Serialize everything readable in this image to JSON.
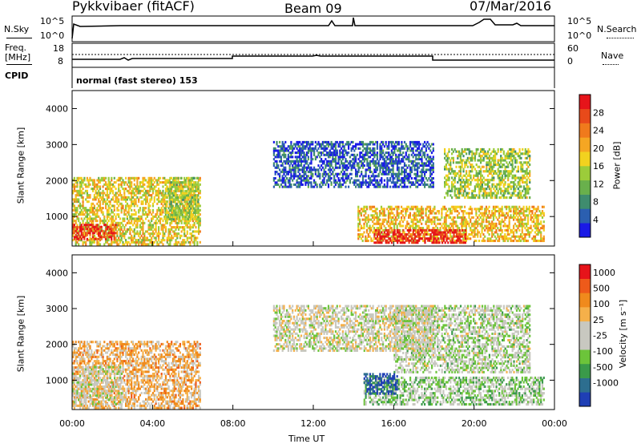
{
  "header": {
    "radar": "Pykkvibaer (fitACF)",
    "beam": "Beam 09",
    "date": "07/Mar/2016"
  },
  "aux": {
    "nsky_label": "N.Sky",
    "nsky_ticks": [
      "10^5",
      "10^0"
    ],
    "nsearch_label": "N.Search",
    "nsearch_ticks": [
      "10^5",
      "10^0"
    ],
    "freq_label": "Freq.",
    "freq_unit": "[MHz]",
    "freq_ticks": [
      "18",
      "8"
    ],
    "nave_label": "Nave",
    "nave_ticks": [
      "60",
      "0"
    ],
    "cpid_label": "CPID",
    "cpid_text": "normal (fast stereo) 153"
  },
  "chart_data": [
    {
      "type": "heatmap",
      "name": "power",
      "ylabel": "Slant Range [km]",
      "yticks": [
        "4000",
        "3000",
        "2000",
        "1000"
      ],
      "ylim": [
        180,
        4500
      ],
      "xlim": [
        0,
        24
      ],
      "colorbar_label": "Power [dB]",
      "colorbar_ticks": [
        "28",
        "24",
        "20",
        "16",
        "12",
        "8",
        "4"
      ],
      "colors": [
        "#1a1ae6",
        "#2b5fb0",
        "#3f8c6e",
        "#69b04c",
        "#9ccc3a",
        "#f2d21f",
        "#f5a623",
        "#f07a1c",
        "#e84a1a",
        "#e6141a"
      ],
      "regions": [
        {
          "t0": 0.0,
          "t1": 6.4,
          "r0": 200,
          "r1": 2100,
          "level": 0.55
        },
        {
          "t0": 0.0,
          "t1": 2.2,
          "r0": 350,
          "r1": 800,
          "level": 0.9
        },
        {
          "t0": 4.6,
          "t1": 6.3,
          "r0": 900,
          "r1": 2100,
          "level": 0.45
        },
        {
          "t0": 14.2,
          "t1": 23.5,
          "r0": 300,
          "r1": 1300,
          "level": 0.6
        },
        {
          "t0": 15.0,
          "t1": 19.6,
          "r0": 250,
          "r1": 650,
          "level": 0.95
        },
        {
          "t0": 18.5,
          "t1": 22.8,
          "r0": 1500,
          "r1": 2900,
          "level": 0.45
        },
        {
          "t0": 10.0,
          "t1": 18.0,
          "r0": 1800,
          "r1": 3100,
          "level": 0.15
        }
      ]
    },
    {
      "type": "heatmap",
      "name": "velocity",
      "ylabel": "Slant Range [km]",
      "yticks": [
        "4000",
        "3000",
        "2000",
        "1000"
      ],
      "ylim": [
        180,
        4500
      ],
      "xlim": [
        0,
        24
      ],
      "xticks": [
        "00:00",
        "04:00",
        "08:00",
        "12:00",
        "16:00",
        "20:00",
        "00:00"
      ],
      "xlabel": "Time UT",
      "colorbar_label": "Velocity [m s⁻¹]",
      "colorbar_ticks": [
        "1000",
        "500",
        "100",
        "25",
        "-25",
        "-100",
        "-500",
        "-1000"
      ],
      "colors": [
        "#1f3fb5",
        "#2d6e8f",
        "#3a9a4a",
        "#6cc43a",
        "#c8c8c0",
        "#c8c8c0",
        "#f5b04a",
        "#f08a1c",
        "#ee5a1a",
        "#e6141a"
      ],
      "regions": [
        {
          "t0": 0.0,
          "t1": 6.4,
          "r0": 200,
          "r1": 2100,
          "level": 0.65
        },
        {
          "t0": 0.0,
          "t1": 2.5,
          "r0": 300,
          "r1": 1400,
          "level": 0.5
        },
        {
          "t0": 14.5,
          "t1": 23.5,
          "r0": 300,
          "r1": 1100,
          "level": 0.4
        },
        {
          "t0": 14.5,
          "t1": 16.2,
          "r0": 600,
          "r1": 1200,
          "level": 0.1
        },
        {
          "t0": 16.0,
          "t1": 22.8,
          "r0": 1200,
          "r1": 3100,
          "level": 0.45
        },
        {
          "t0": 10.0,
          "t1": 18.0,
          "r0": 1800,
          "r1": 3100,
          "level": 0.5
        }
      ]
    }
  ]
}
